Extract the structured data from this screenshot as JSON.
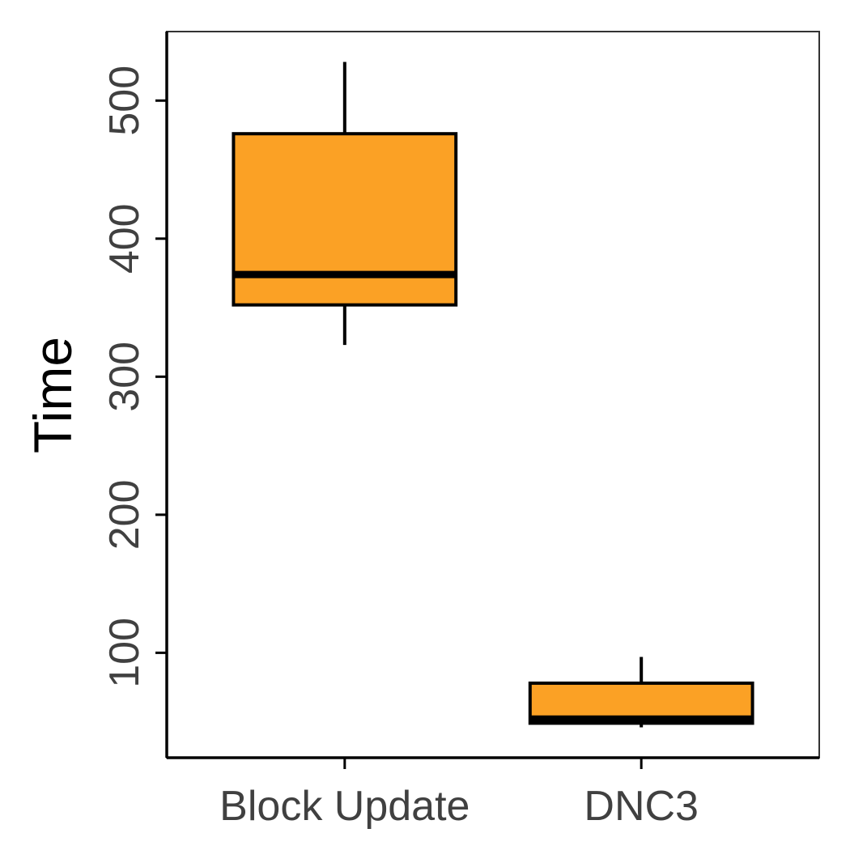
{
  "chart_data": {
    "type": "box",
    "ylabel": "Time",
    "xlabel": "",
    "ylim": [
      24,
      550
    ],
    "yticks": [
      100,
      200,
      300,
      400,
      500
    ],
    "categories": [
      "Block Update",
      "DNC3"
    ],
    "boxes": [
      {
        "category": "Block Update",
        "whisker_low": 323,
        "q1": 352,
        "median": 374,
        "q3": 476,
        "whisker_high": 528
      },
      {
        "category": "DNC3",
        "whisker_low": 46,
        "q1": 49,
        "median": 52,
        "q3": 78,
        "whisker_high": 97
      }
    ],
    "fill_color": "#FBA125",
    "outline_color": "#000000",
    "grid": false,
    "legend": false
  }
}
